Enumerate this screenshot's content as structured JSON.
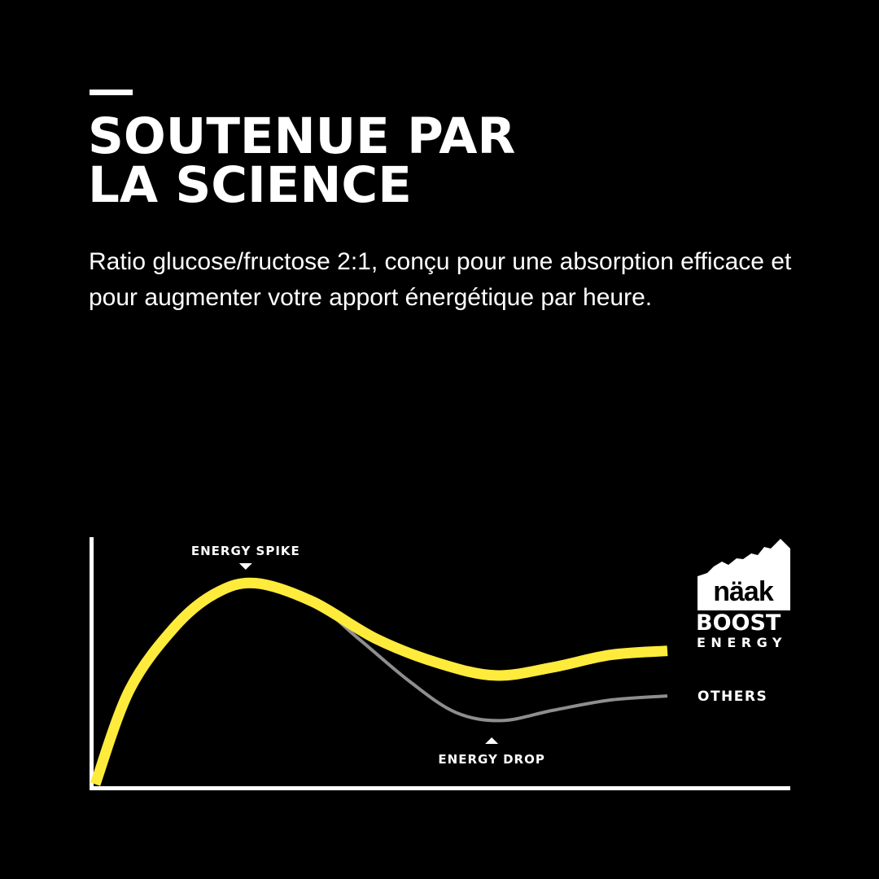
{
  "header": {
    "title_line1": "SOUTENUE PAR",
    "title_line2": "LA SCIENCE",
    "subtitle": "Ratio glucose/fructose 2:1, conçu pour une absorption efficace et pour augmenter votre apport énergétique par heure."
  },
  "brand": {
    "logo_text": "näak",
    "product_line1": "BOOST",
    "product_line2": "ENERGY"
  },
  "chart_data": {
    "type": "line",
    "title": "",
    "xlabel": "",
    "ylabel": "",
    "xlim": [
      0,
      100
    ],
    "ylim": [
      0,
      100
    ],
    "grid": false,
    "annotations": [
      {
        "text": "ENERGY SPIKE",
        "x": 28,
        "pointer": "down"
      },
      {
        "text": "ENERGY DROP",
        "x": 71,
        "pointer": "up"
      }
    ],
    "series": [
      {
        "name": "näak BOOST ENERGY",
        "color": "#FFEB3B",
        "x": [
          0,
          6,
          14,
          21,
          28,
          38,
          49,
          60,
          70,
          80,
          90,
          100
        ],
        "y": [
          1,
          47,
          78,
          94,
          99,
          90,
          72,
          60,
          54,
          58,
          64,
          66
        ]
      },
      {
        "name": "OTHERS",
        "color": "#8E8E8E",
        "x": [
          0,
          6,
          14,
          21,
          28,
          38,
          46,
          55,
          63,
          71,
          80,
          90,
          100
        ],
        "y": [
          1,
          47,
          78,
          94,
          99,
          90,
          72,
          51,
          36,
          32,
          37,
          42,
          44
        ]
      }
    ]
  }
}
